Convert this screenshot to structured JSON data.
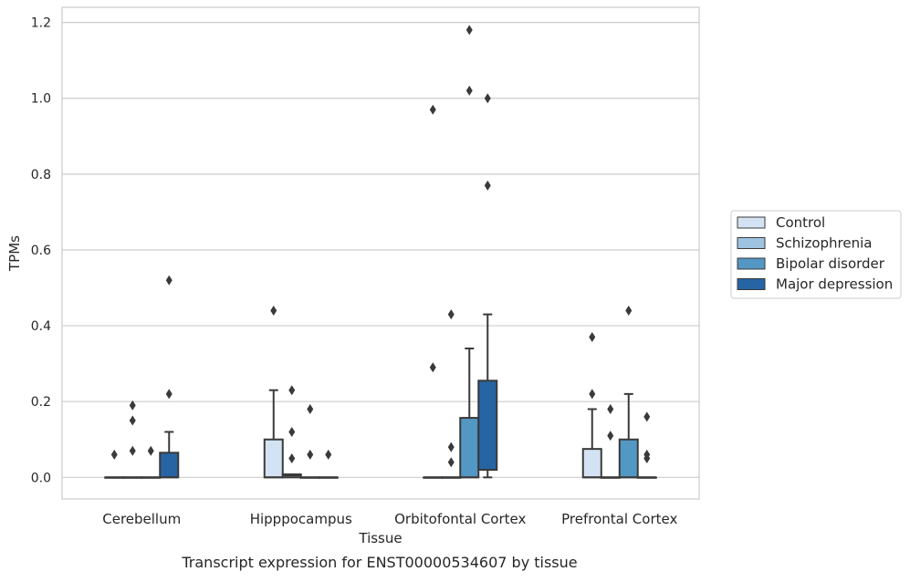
{
  "chart_data": {
    "type": "boxplot",
    "title": "",
    "caption": "Transcript expression for ENST00000534607 by tissue",
    "xlabel": "Tissue",
    "ylabel": "TPMs",
    "ylim": [
      -0.057,
      1.24
    ],
    "yticks": [
      0.0,
      0.2,
      0.4,
      0.6,
      0.8,
      1.0,
      1.2
    ],
    "ytick_labels": [
      "0.0",
      "0.2",
      "0.4",
      "0.6",
      "0.8",
      "1.0",
      "1.2"
    ],
    "grid": "horizontal",
    "legend_position": "right",
    "categories": [
      "Cerebellum",
      "Hipppocampus",
      "Orbitofontal Cortex",
      "Prefrontal Cortex"
    ],
    "series": [
      {
        "name": "Control",
        "color": "#d4e3f3",
        "boxes": [
          {
            "q1": 0.0,
            "median": 0.0,
            "q3": 0.0,
            "whislo": 0.0,
            "whishi": 0.0,
            "fliers": [
              0.06
            ]
          },
          {
            "q1": 0.0,
            "median": 0.0,
            "q3": 0.1,
            "whislo": 0.0,
            "whishi": 0.23,
            "fliers": [
              0.44
            ]
          },
          {
            "q1": 0.0,
            "median": 0.0,
            "q3": 0.0,
            "whislo": 0.0,
            "whishi": 0.0,
            "fliers": [
              0.29,
              0.97
            ]
          },
          {
            "q1": 0.0,
            "median": 0.0,
            "q3": 0.075,
            "whislo": 0.0,
            "whishi": 0.18,
            "fliers": [
              0.22,
              0.37
            ]
          }
        ]
      },
      {
        "name": "Schizophrenia",
        "color": "#9dc3e0",
        "boxes": [
          {
            "q1": 0.0,
            "median": 0.0,
            "q3": 0.0,
            "whislo": 0.0,
            "whishi": 0.0,
            "fliers": [
              0.07,
              0.15,
              0.19
            ]
          },
          {
            "q1": 0.0,
            "median": 0.005,
            "q3": 0.008,
            "whislo": 0.0,
            "whishi": 0.008,
            "fliers": [
              0.05,
              0.12,
              0.23
            ]
          },
          {
            "q1": 0.0,
            "median": 0.0,
            "q3": 0.0,
            "whislo": 0.0,
            "whishi": 0.0,
            "fliers": [
              0.04,
              0.08,
              0.43
            ]
          },
          {
            "q1": 0.0,
            "median": 0.0,
            "q3": 0.0,
            "whislo": 0.0,
            "whishi": 0.0,
            "fliers": [
              0.11,
              0.18
            ]
          }
        ]
      },
      {
        "name": "Bipolar disorder",
        "color": "#5397c4",
        "boxes": [
          {
            "q1": 0.0,
            "median": 0.0,
            "q3": 0.0,
            "whislo": 0.0,
            "whishi": 0.0,
            "fliers": [
              0.07
            ]
          },
          {
            "q1": 0.0,
            "median": 0.0,
            "q3": 0.0,
            "whislo": 0.0,
            "whishi": 0.0,
            "fliers": [
              0.06,
              0.18
            ]
          },
          {
            "q1": 0.0,
            "median": 0.0,
            "q3": 0.157,
            "whislo": 0.0,
            "whishi": 0.34,
            "fliers": [
              1.02,
              1.18
            ]
          },
          {
            "q1": 0.0,
            "median": 0.0,
            "q3": 0.1,
            "whislo": 0.0,
            "whishi": 0.22,
            "fliers": [
              0.44
            ]
          }
        ]
      },
      {
        "name": "Major depression",
        "color": "#2664a4",
        "boxes": [
          {
            "q1": 0.0,
            "median": 0.0,
            "q3": 0.065,
            "whislo": 0.0,
            "whishi": 0.12,
            "fliers": [
              0.22,
              0.52
            ]
          },
          {
            "q1": 0.0,
            "median": 0.0,
            "q3": 0.0,
            "whislo": 0.0,
            "whishi": 0.0,
            "fliers": [
              0.06
            ]
          },
          {
            "q1": 0.02,
            "median": 0.02,
            "q3": 0.255,
            "whislo": 0.0,
            "whishi": 0.43,
            "fliers": [
              0.77,
              1.0
            ]
          },
          {
            "q1": 0.0,
            "median": 0.0,
            "q3": 0.0,
            "whislo": 0.0,
            "whishi": 0.0,
            "fliers": [
              0.05,
              0.06,
              0.16
            ]
          }
        ]
      }
    ]
  }
}
